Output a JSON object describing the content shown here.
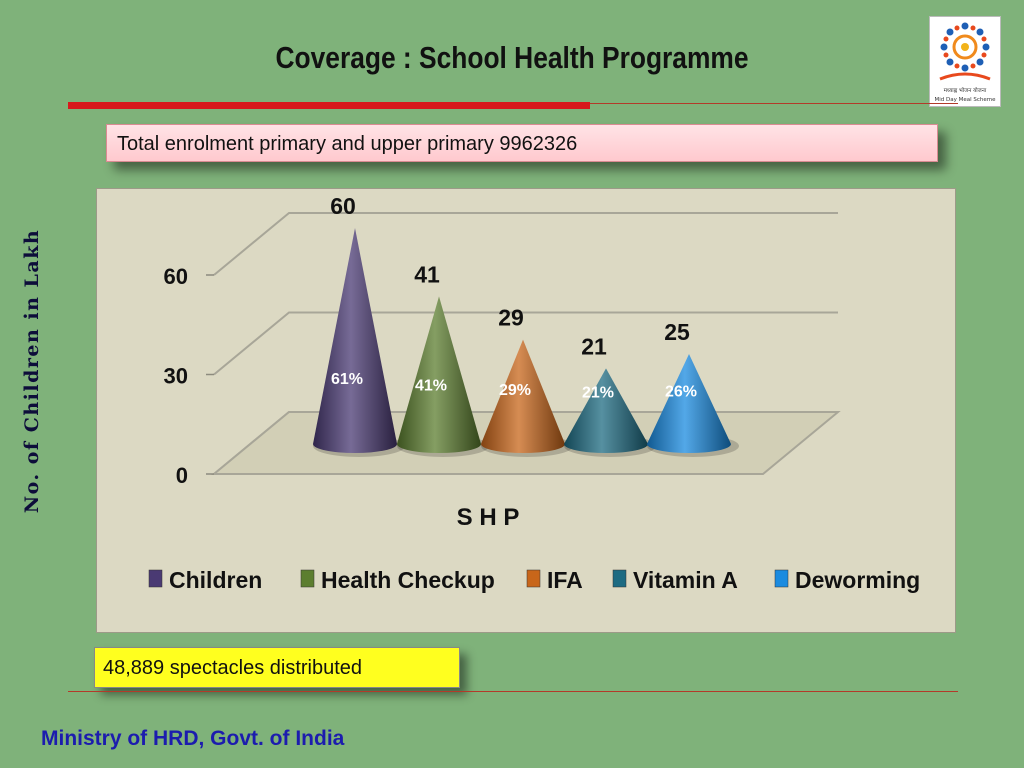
{
  "title": "Coverage : School Health Programme",
  "logo": {
    "text": "मध्याह्न भोजन योजना",
    "subtext": "Mid Day Meal Scheme"
  },
  "enrolment_text": "Total enrolment primary and upper primary 9962326",
  "spectacles_text": "48,889 spectacles distributed",
  "footer": "Ministry of HRD, Govt. of India",
  "chart_data": {
    "type": "bar",
    "title": "",
    "xlabel": "S H P",
    "ylabel": "No. of Children in Lakh",
    "ylim": [
      0,
      60
    ],
    "yticks": [
      0,
      30,
      60
    ],
    "categories": [
      "S H P"
    ],
    "series": [
      {
        "name": "Children",
        "values": [
          60
        ],
        "pct": "61%",
        "color": "#4a3a73"
      },
      {
        "name": "Health Checkup",
        "values": [
          41
        ],
        "pct": "41%",
        "color": "#5c7e2f"
      },
      {
        "name": "IFA",
        "values": [
          29
        ],
        "pct": "29%",
        "color": "#c8661a"
      },
      {
        "name": "Vitamin A",
        "values": [
          21
        ],
        "pct": "21%",
        "color": "#1d6b82"
      },
      {
        "name": "Deworming",
        "values": [
          25
        ],
        "pct": "26%",
        "color": "#1a8be0"
      }
    ],
    "legend_position": "bottom",
    "grid": true
  }
}
